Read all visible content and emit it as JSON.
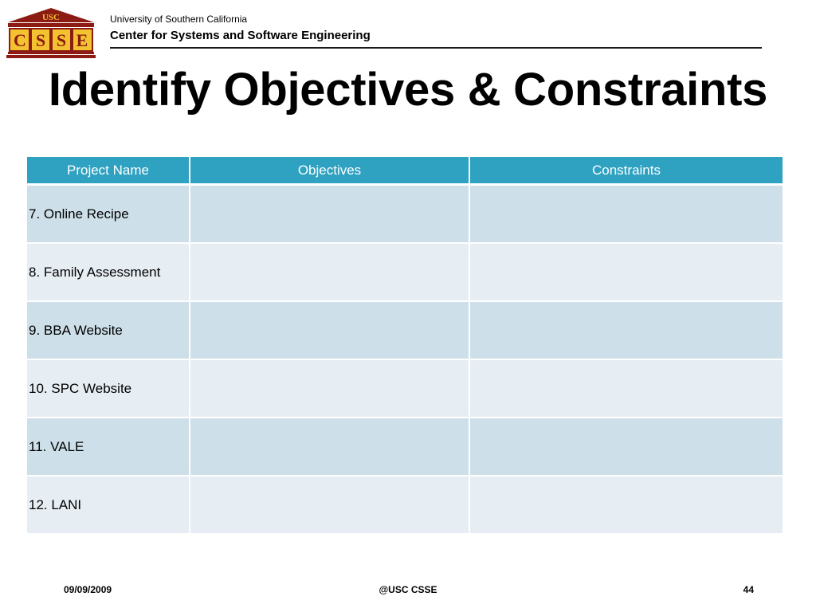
{
  "header": {
    "logo_text": "USC",
    "logo_letters": [
      "C",
      "S",
      "S",
      "E"
    ],
    "university": "University of Southern California",
    "center": "Center for Systems and Software Engineering",
    "brand_color": "#8c1c13",
    "brand_gold": "#f2c230"
  },
  "title": "Identify Objectives & Constraints",
  "table": {
    "headers": [
      "Project Name",
      "Objectives",
      "Constraints"
    ],
    "rows": [
      [
        "7. Online Recipe",
        "",
        ""
      ],
      [
        "8. Family Assessment",
        "",
        ""
      ],
      [
        "9. BBA Website",
        "",
        ""
      ],
      [
        "10. SPC Website",
        "",
        ""
      ],
      [
        "11. VALE",
        "",
        ""
      ],
      [
        "12. LANI",
        "",
        ""
      ]
    ],
    "header_color": "#2fa1c1",
    "row_color_a": "#cddfe8",
    "row_color_b": "#e6eef4"
  },
  "footer": {
    "date": "09/09/2009",
    "center": "@USC CSSE",
    "page": "44"
  }
}
